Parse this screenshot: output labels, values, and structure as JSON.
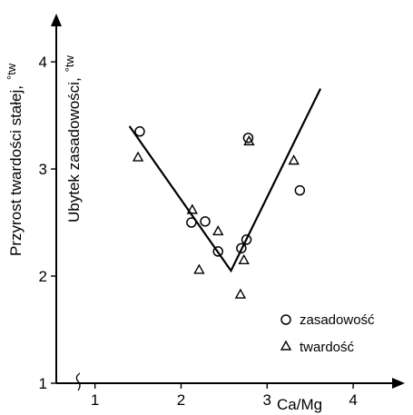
{
  "chart_data": {
    "type": "scatter",
    "xlabel": "Ca/Mg",
    "ylabel_outer": "Przyrost twardości stałej,",
    "ylabel_inner": "Ubytek zasadowości,",
    "ylabel_unit": "°tw",
    "xlim": [
      0.55,
      4.6
    ],
    "ylim": [
      1.0,
      4.45
    ],
    "x_ticks": [
      1,
      2,
      3,
      4
    ],
    "x_tick_labels": [
      "1",
      "2",
      "3",
      "4"
    ],
    "y_ticks": [
      1,
      2,
      3,
      4
    ],
    "y_tick_labels": [
      "1",
      "2",
      "3",
      "4"
    ],
    "grid": false,
    "legend_position": "bottom-right",
    "series": [
      {
        "name": "zasadowość",
        "marker": "circle",
        "points": [
          [
            1.52,
            3.35
          ],
          [
            2.12,
            2.5
          ],
          [
            2.28,
            2.51
          ],
          [
            2.43,
            2.23
          ],
          [
            2.7,
            2.26
          ],
          [
            2.76,
            2.34
          ],
          [
            2.78,
            3.29
          ],
          [
            3.38,
            2.8
          ]
        ]
      },
      {
        "name": "twardość",
        "marker": "triangle",
        "points": [
          [
            1.5,
            3.11
          ],
          [
            2.13,
            2.62
          ],
          [
            2.21,
            2.06
          ],
          [
            2.43,
            2.42
          ],
          [
            2.69,
            1.83
          ],
          [
            2.73,
            2.15
          ],
          [
            2.79,
            3.26
          ],
          [
            3.31,
            3.08
          ]
        ]
      },
      {
        "marker": "line",
        "points": [
          [
            1.4,
            3.4
          ],
          [
            2.58,
            2.05
          ],
          [
            3.62,
            3.75
          ]
        ]
      }
    ]
  }
}
